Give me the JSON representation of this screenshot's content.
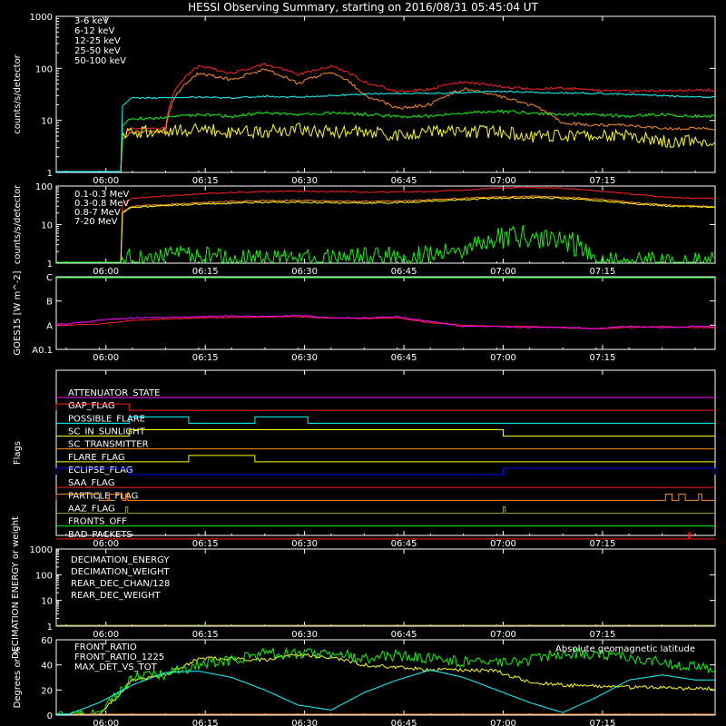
{
  "title": "HESSI Observing Summary, starting on 2016/08/31 05:45:04 UT",
  "time_ticks": [
    "06:00",
    "06:15",
    "06:30",
    "06:45",
    "07:00",
    "07:15"
  ],
  "time_tick_minutes": [
    6,
    21,
    36,
    51,
    66,
    81
  ],
  "time_range_minutes": [
    -1.5,
    98.0
  ],
  "chart_data": [
    {
      "type": "line",
      "panel": "low-energy-rates",
      "ylabel": "counts/s/detector",
      "yscale": "log",
      "ylim": [
        1,
        1000
      ],
      "ytick_labels": [
        "1",
        "10",
        "100",
        "1000"
      ],
      "yticks": [
        1,
        10,
        100,
        1000
      ],
      "x": [
        0,
        5,
        10,
        15,
        20,
        25,
        30,
        35,
        40,
        45,
        50,
        55,
        60,
        65,
        70,
        75,
        80,
        85,
        90,
        95
      ],
      "series": [
        {
          "name": "3-6 keV",
          "color": "#ff2020",
          "values": [
            1,
            1,
            7,
            7,
            110,
            80,
            120,
            75,
            110,
            55,
            35,
            40,
            55,
            45,
            40,
            42,
            38,
            36,
            37,
            38
          ]
        },
        {
          "name": "6-12 keV",
          "color": "#ff8c1a",
          "values": [
            1,
            1,
            6,
            6,
            80,
            60,
            95,
            50,
            85,
            30,
            17,
            20,
            40,
            30,
            20,
            9,
            8,
            8,
            7,
            7
          ]
        },
        {
          "name": "12-25 keV",
          "color": "#ffff00",
          "values": [
            1,
            1,
            6,
            6,
            7,
            6,
            6,
            7,
            6,
            6,
            5,
            6,
            6,
            6,
            5,
            5,
            5,
            5,
            4,
            4
          ]
        },
        {
          "name": "25-50 keV",
          "color": "#00ff00",
          "values": [
            1,
            1,
            11,
            11,
            13,
            12,
            14,
            13,
            14,
            13,
            12,
            12,
            14,
            15,
            14,
            13,
            13,
            12,
            13,
            12
          ]
        },
        {
          "name": "50-100 keV",
          "color": "#00ffff",
          "values": [
            1,
            1,
            27,
            27,
            28,
            27,
            29,
            28,
            30,
            32,
            33,
            33,
            34,
            36,
            35,
            34,
            33,
            32,
            30,
            28
          ]
        }
      ]
    },
    {
      "type": "line",
      "panel": "high-energy-rates",
      "ylabel": "counts/s/detector",
      "yscale": "log",
      "ylim": [
        1,
        100
      ],
      "ytick_labels": [
        "1",
        "10",
        "100"
      ],
      "yticks": [
        1,
        10,
        100
      ],
      "x": [
        0,
        5,
        10,
        15,
        20,
        25,
        30,
        35,
        40,
        45,
        50,
        55,
        60,
        65,
        70,
        75,
        80,
        85,
        90,
        95
      ],
      "series": [
        {
          "name": "0.1-0.3 MeV",
          "color": "#ff2020",
          "values": [
            1,
            1,
            48,
            55,
            62,
            68,
            72,
            73,
            72,
            70,
            70,
            72,
            78,
            88,
            92,
            88,
            75,
            62,
            52,
            48
          ]
        },
        {
          "name": "0.3-0.8 MeV",
          "color": "#ff8c1a",
          "values": [
            1,
            1,
            30,
            33,
            37,
            40,
            42,
            42,
            41,
            40,
            41,
            44,
            48,
            52,
            54,
            52,
            46,
            38,
            33,
            30
          ]
        },
        {
          "name": "0.8-7 MeV",
          "color": "#ffff00",
          "values": [
            1,
            1,
            28,
            31,
            34,
            36,
            38,
            38,
            37,
            36,
            37,
            40,
            44,
            48,
            50,
            48,
            42,
            35,
            31,
            29
          ]
        },
        {
          "name": "7-20 MeV",
          "color": "#00ff00",
          "values": [
            1,
            1,
            1.3,
            1.3,
            1.5,
            1.2,
            1.3,
            1.5,
            1.4,
            1.3,
            1.4,
            1.5,
            2.5,
            4.5,
            5,
            4.2,
            1,
            1,
            1,
            1
          ]
        }
      ]
    },
    {
      "type": "line",
      "panel": "goes",
      "ylabel": "GOES15 [W m^-2]",
      "ytick_labels": [
        "A0.1",
        "A",
        "B",
        "C"
      ],
      "ylim": [
        0,
        3
      ],
      "yticks": [
        0,
        1,
        2,
        3
      ],
      "x": [
        0,
        5,
        10,
        15,
        20,
        25,
        30,
        35,
        40,
        45,
        50,
        55,
        60,
        65,
        70,
        75,
        80,
        85,
        90,
        95
      ],
      "series": [
        {
          "name": "",
          "color": "#ff2020",
          "values": [
            1.0,
            1.05,
            1.2,
            1.25,
            1.3,
            1.32,
            1.34,
            1.35,
            1.3,
            1.28,
            1.3,
            1.1,
            1.0,
            0.95,
            0.95,
            0.9,
            0.85,
            0.9,
            0.95,
            0.9
          ]
        },
        {
          "name": "",
          "color": "#ff00ff",
          "values": [
            1.05,
            1.2,
            1.3,
            1.32,
            1.35,
            1.38,
            1.36,
            1.4,
            1.3,
            1.3,
            1.35,
            1.15,
            0.95,
            0.95,
            0.9,
            0.92,
            0.85,
            0.95,
            0.9,
            0.95
          ]
        },
        {
          "name": "",
          "color": "#00ff00",
          "values": [
            2.98,
            2.98,
            2.98,
            2.98,
            2.98,
            2.98,
            2.98,
            2.98,
            2.98,
            2.98,
            2.98,
            2.98,
            2.98,
            2.98,
            2.98,
            2.98,
            2.98,
            2.98,
            2.98,
            2.98
          ]
        }
      ]
    },
    {
      "type": "line",
      "panel": "flags",
      "ylabel": "Flags",
      "flags": [
        {
          "name": "ATTENUATOR_STATE",
          "color": "#ff00ff",
          "segments": []
        },
        {
          "name": "GAP_FLAG",
          "color": "#ff2020",
          "segments": [
            [
              -1.5,
              9.5
            ]
          ]
        },
        {
          "name": "POSSIBLE_FLARE",
          "color": "#00ffff",
          "segments": [
            [
              9.5,
              18.5
            ],
            [
              28.5,
              36.5
            ]
          ]
        },
        {
          "name": "SC_IN_SUNLIGHT",
          "color": "#ffff00",
          "segments": [
            [
              9.5,
              66.0
            ]
          ]
        },
        {
          "name": "SC_TRANSMITTER",
          "color": "#ff8c1a",
          "segments": []
        },
        {
          "name": "FLARE_FLAG",
          "color": "#ffff00",
          "segments": [
            [
              18.5,
              28.5
            ]
          ]
        },
        {
          "name": "ECLIPSE_FLAG",
          "color": "#0000ff",
          "segments": [
            [
              -1.5,
              9.5
            ],
            [
              66.0,
              98.0
            ]
          ]
        },
        {
          "name": "SAA_FLAG",
          "color": "#ff2020",
          "segments": []
        },
        {
          "name": "PARTICLE_FLAG",
          "color": "#ff8c1a",
          "segments": [
            [
              -1.5,
              5.0
            ],
            [
              6.5,
              8.5
            ],
            [
              9.0,
              9.3
            ],
            [
              90.5,
              91.5
            ],
            [
              92.5,
              93.5
            ],
            [
              95.5,
              96.0
            ]
          ]
        },
        {
          "name": "AAZ_FLAG",
          "color": "#9a9a30",
          "segments": [
            [
              9.0,
              9.3
            ],
            [
              66.0,
              66.3
            ]
          ]
        },
        {
          "name": "FRONTS_OFF",
          "color": "#00ff00",
          "segments": []
        },
        {
          "name": "BAD_PACKETS",
          "color": "#ff2020",
          "segments": [
            [
              94.0,
              94.2
            ]
          ]
        }
      ]
    },
    {
      "type": "line",
      "panel": "decimation",
      "ylabel": "DECIMATION ENERGY or weight",
      "yscale": "log",
      "ylim": [
        1,
        1000
      ],
      "ytick_labels": [
        "1",
        "10",
        "100",
        "1000"
      ],
      "yticks": [
        1,
        10,
        100,
        1000
      ],
      "series": [
        {
          "name": "DECIMATION_ENERGY",
          "color": "#00ff00",
          "values": []
        },
        {
          "name": "DECIMATION_WEIGHT",
          "color": "#ff8c1a",
          "values": []
        },
        {
          "name": "REAR_DEC_CHAN/128",
          "color": "#00ffff",
          "values": []
        },
        {
          "name": "REAR_DEC_WEIGHT",
          "color": "#9a9a30",
          "values": []
        }
      ]
    },
    {
      "type": "line",
      "panel": "ratios",
      "ylabel": "Degrees or %",
      "ylim": [
        0,
        60
      ],
      "ytick_labels": [
        "0",
        "20",
        "40",
        "60"
      ],
      "yticks": [
        0,
        20,
        40,
        60
      ],
      "annotation": "Absolute geomagnetic latitude",
      "annotation_color": "#00ffff",
      "x": [
        0,
        5,
        10,
        15,
        20,
        25,
        30,
        35,
        40,
        45,
        50,
        55,
        60,
        65,
        70,
        75,
        80,
        85,
        90,
        95
      ],
      "series": [
        {
          "name": "FRONT_RATIO",
          "color": "#ffff00",
          "values": [
            0,
            0,
            28,
            32,
            45,
            45,
            44,
            48,
            46,
            40,
            38,
            36,
            36,
            35,
            26,
            24,
            23,
            22,
            22,
            21
          ]
        },
        {
          "name": "FRONT_RATIO_1225",
          "color": "#00ff00",
          "values": [
            0,
            0,
            30,
            33,
            40,
            44,
            50,
            48,
            50,
            45,
            48,
            45,
            42,
            42,
            44,
            50,
            48,
            45,
            42,
            38
          ]
        },
        {
          "name": "MAX_DET_VS_TOT",
          "color": "#ff8c1a",
          "values": [
            0,
            0,
            0,
            0,
            0,
            0,
            0,
            0,
            0,
            0,
            0,
            0,
            0,
            0,
            0,
            0,
            0,
            0,
            0,
            0
          ]
        },
        {
          "name": "",
          "color": "#00ffff",
          "values": [
            0,
            10,
            24,
            34,
            35,
            30,
            20,
            8,
            4,
            18,
            28,
            36,
            30,
            20,
            10,
            2,
            14,
            28,
            32,
            28
          ]
        }
      ]
    }
  ]
}
